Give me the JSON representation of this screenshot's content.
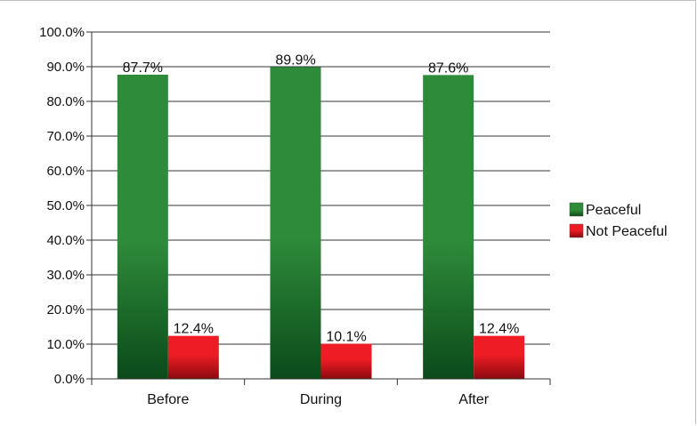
{
  "chart_data": {
    "type": "bar",
    "categories": [
      "Before",
      "During",
      "After"
    ],
    "series": [
      {
        "name": "Peaceful",
        "values": [
          87.7,
          89.9,
          87.6
        ],
        "labels": [
          "87.7%",
          "89.9%",
          "87.6%"
        ],
        "color": "#2e8b3a",
        "color_dark": "#0b4a1a"
      },
      {
        "name": "Not Peaceful",
        "values": [
          12.4,
          10.1,
          12.4
        ],
        "labels": [
          "12.4%",
          "10.1%",
          "12.4%"
        ],
        "color": "#ee1c24",
        "color_dark": "#8a0a10"
      }
    ],
    "ylim": [
      0,
      100
    ],
    "yticks": [
      "0.0%",
      "10.0%",
      "20.0%",
      "30.0%",
      "40.0%",
      "50.0%",
      "60.0%",
      "70.0%",
      "80.0%",
      "90.0%",
      "100.0%"
    ],
    "grid": true,
    "legend_position": "right"
  }
}
